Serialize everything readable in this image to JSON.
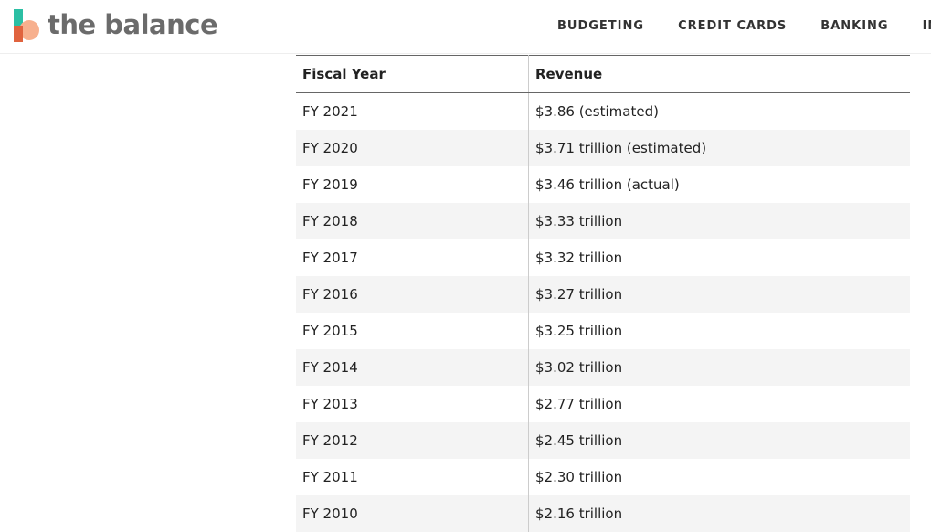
{
  "header": {
    "logo": "the balance",
    "nav": [
      "BUDGETING",
      "CREDIT CARDS",
      "BANKING",
      "INVES"
    ]
  },
  "table": {
    "headers": [
      "Fiscal Year",
      "Revenue"
    ],
    "rows": [
      [
        "FY 2021",
        "$3.86 (estimated)"
      ],
      [
        "FY 2020",
        "$3.71 trillion (estimated)"
      ],
      [
        "FY 2019",
        "$3.46 trillion (actual)"
      ],
      [
        "FY 2018",
        "$3.33 trillion"
      ],
      [
        "FY 2017",
        "$3.32 trillion"
      ],
      [
        "FY 2016",
        "$3.27 trillion"
      ],
      [
        "FY 2015",
        "$3.25 trillion"
      ],
      [
        "FY 2014",
        "$3.02 trillion"
      ],
      [
        "FY 2013",
        "$2.77 trillion"
      ],
      [
        "FY 2012",
        "$2.45 trillion"
      ],
      [
        "FY 2011",
        "$2.30 trillion"
      ],
      [
        "FY 2010",
        "$2.16 trillion"
      ]
    ]
  }
}
